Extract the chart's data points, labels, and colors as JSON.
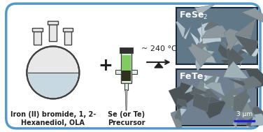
{
  "background_color": "#ffffff",
  "border_color": "#5599cc",
  "arrow_text": "~ 240 °C",
  "label_flask": "Iron (II) bromide, 1, 2-\nHexanediol, OLA",
  "label_syringe": "Se (or Te)\nPrecursor",
  "label_top": "FeSe$_2$",
  "label_bottom": "FeTe$_2$",
  "scale_bar_text": "3 μm",
  "plus_symbol": "+",
  "flask_body_color": "#e8e8e8",
  "flask_liquid_color": "#c8d8e0",
  "flask_outline_color": "#404040",
  "syringe_body_color": "#e0f0e0",
  "syringe_needle_color": "#c0c0c0",
  "syringe_plunger_color": "#303030",
  "arrow_color": "#202020",
  "text_color": "#202020",
  "label_fontsize": 7,
  "arrow_fontsize": 8,
  "sem_label_fontsize": 9,
  "sem_top_dark": "#607888",
  "sem_top_light": "#c8d8e0",
  "sem_bot_dark": "#708090",
  "sem_bot_light": "#b8ccd4"
}
